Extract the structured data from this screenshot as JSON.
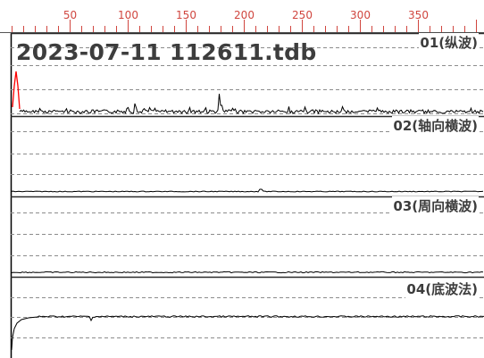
{
  "ruler": {
    "ticks": [
      "50",
      "100",
      "150",
      "200",
      "250",
      "300",
      "350"
    ],
    "tick_color": "#d0463f"
  },
  "file_title": "2023-07-11 112611.tdb",
  "channels": [
    {
      "label": "01(纵波)",
      "trace_color": "#000000"
    },
    {
      "label": "02(轴向横波)",
      "trace_color": "#000000"
    },
    {
      "label": "03(周向横波)",
      "trace_color": "#000000"
    },
    {
      "label": "04(底波法)",
      "trace_color": "#000000"
    }
  ],
  "colors": {
    "marker": "#ff0000",
    "grid_dash": "#8c8c8c",
    "divider": "#2a2a2a",
    "text": "#3d3d3d"
  }
}
